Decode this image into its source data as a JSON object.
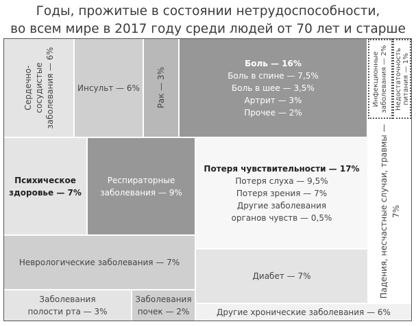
{
  "title_lines": [
    "Годы, прожитые в состоянии нетрудоспособности,",
    "во всем мире в 2017 году среди людей от 70 лет и старше"
  ],
  "chart_data": {
    "type": "treemap",
    "title": "Годы, прожитые в состоянии нетрудоспособности, во всем мире в 2017 году среди людей от 70 лет и старше",
    "unit": "%",
    "items": [
      {
        "label": "Сердечно-сосудистые заболевания — 6%",
        "value": 6
      },
      {
        "label": "Инсульт — 6%",
        "value": 6
      },
      {
        "label": "Рак — 3%",
        "value": 3
      },
      {
        "label": "Боль — 16%",
        "value": 16,
        "children": [
          {
            "label": "Боль в спине — 7,5%",
            "value": 7.5
          },
          {
            "label": "Боль в шее — 3,5%",
            "value": 3.5
          },
          {
            "label": "Артрит — 3%",
            "value": 3
          },
          {
            "label": "Прочее — 2%",
            "value": 2
          }
        ]
      },
      {
        "label": "Инфекционные заболевания — 2%",
        "value": 2
      },
      {
        "label": "Недостаточность питания — 1%",
        "value": 1
      },
      {
        "label": "Падения, несчастные случаи, травмы — 7%",
        "value": 7
      },
      {
        "label": "Психическое здоровье — 7%",
        "value": 7
      },
      {
        "label": "Респираторные заболевания — 9%",
        "value": 9
      },
      {
        "label": "Потеря чувствительности — 17%",
        "value": 17,
        "children": [
          {
            "label": "Потеря слуха — 9,5%",
            "value": 9.5
          },
          {
            "label": "Потеря зрения — 7%",
            "value": 7
          },
          {
            "label": "Другие заболевания органов чувств — 0,5%",
            "value": 0.5
          }
        ]
      },
      {
        "label": "Неврологические заболевания — 7%",
        "value": 7
      },
      {
        "label": "Диабет — 7%",
        "value": 7
      },
      {
        "label": "Заболевания полости рта — 3%",
        "value": 3
      },
      {
        "label": "Заболевания почек — 2%",
        "value": 2
      },
      {
        "label": "Другие хронические заболевания — 6%",
        "value": 6
      }
    ]
  },
  "labels": {
    "cardio": [
      "Сердечно-",
      "сосудистые",
      "заболевания — 6%"
    ],
    "stroke": "Инсульт — 6%",
    "cancer": "Рак — 3%",
    "pain_title": "Боль — 16%",
    "pain_lines": [
      "Боль в спине — 7,5%",
      "Боль в шее — 3,5%",
      "Артрит — 3%",
      "Прочее — 2%"
    ],
    "infect": [
      "Инфекционные",
      "заболевания — 2%"
    ],
    "nutrition": [
      "Недостаточность",
      "питания — 1%"
    ],
    "falls": "Падения, несчастные случаи, травмы — 7%",
    "mental": [
      "Психическое",
      "здоровье — 7%"
    ],
    "resp": [
      "Респираторные",
      "заболевания — 9%"
    ],
    "sense_title": "Потеря чувствительности — 17%",
    "sense_lines": [
      "Потеря слуха — 9,5%",
      "Потеря зрения — 7%",
      "Другие заболевания",
      "органов чувств — 0,5%"
    ],
    "neuro": "Неврологические заболевания — 7%",
    "diabetes": "Диабет — 7%",
    "oral": [
      "Заболевания",
      "полости рта — 3%"
    ],
    "kidney": [
      "Заболевания",
      "почек — 2%"
    ],
    "other": "Другие хронические заболевания — 6%"
  },
  "colors": {
    "light": "#e4e4e4",
    "mid": "#cfcfcf",
    "mid2": "#b8b8b8",
    "dark": "#979797",
    "white": "#ffffff",
    "faint": "#f1f1f1"
  }
}
